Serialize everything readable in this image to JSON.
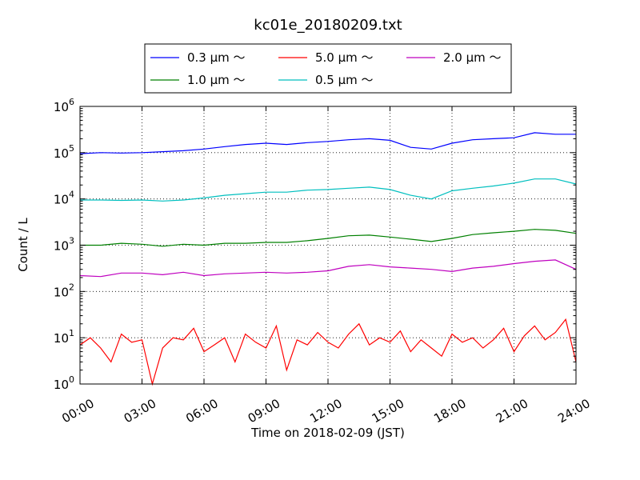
{
  "chart_data": {
    "type": "line",
    "title": "kc01e_20180209.txt",
    "xlabel": "Time on 2018-02-09 (JST)",
    "ylabel": "Count / L",
    "y_scale": "log",
    "ylim": [
      1,
      1000000
    ],
    "xlim_hours": [
      0,
      24
    ],
    "x_tick_labels": [
      "00:00",
      "03:00",
      "06:00",
      "09:00",
      "12:00",
      "15:00",
      "18:00",
      "21:00",
      "24:00"
    ],
    "y_tick_labels": [
      {
        "base": "10",
        "exp": "0"
      },
      {
        "base": "10",
        "exp": "1"
      },
      {
        "base": "10",
        "exp": "2"
      },
      {
        "base": "10",
        "exp": "3"
      },
      {
        "base": "10",
        "exp": "4"
      },
      {
        "base": "10",
        "exp": "5"
      },
      {
        "base": "10",
        "exp": "6"
      }
    ],
    "grid": true,
    "legend_position": "top",
    "series": [
      {
        "name": "0.3 μm ～",
        "color": "#0000ff",
        "x_hours": [
          0,
          1,
          2,
          3,
          4,
          5,
          6,
          7,
          8,
          9,
          10,
          11,
          12,
          13,
          14,
          15,
          16,
          17,
          18,
          19,
          20,
          21,
          22,
          23,
          24
        ],
        "values": [
          95000,
          100000,
          98000,
          100000,
          105000,
          110000,
          120000,
          135000,
          150000,
          160000,
          150000,
          165000,
          175000,
          190000,
          200000,
          185000,
          130000,
          120000,
          160000,
          190000,
          200000,
          210000,
          270000,
          250000,
          250000
        ]
      },
      {
        "name": "0.5 μm ～",
        "color": "#00bfbf",
        "x_hours": [
          0,
          1,
          2,
          3,
          4,
          5,
          6,
          7,
          8,
          9,
          10,
          11,
          12,
          13,
          14,
          15,
          16,
          17,
          18,
          19,
          20,
          21,
          22,
          23,
          24
        ],
        "values": [
          9500,
          9500,
          9300,
          9500,
          9000,
          9500,
          10500,
          12000,
          13000,
          14000,
          14000,
          15500,
          16000,
          17000,
          18000,
          16000,
          12000,
          10000,
          15000,
          17000,
          19000,
          22000,
          27000,
          27000,
          21000
        ]
      },
      {
        "name": "1.0 μm ～",
        "color": "#008000",
        "x_hours": [
          0,
          1,
          2,
          3,
          4,
          5,
          6,
          7,
          8,
          9,
          10,
          11,
          12,
          13,
          14,
          15,
          16,
          17,
          18,
          19,
          20,
          21,
          22,
          23,
          24
        ],
        "values": [
          1000,
          1000,
          1100,
          1050,
          950,
          1050,
          1000,
          1100,
          1100,
          1150,
          1150,
          1250,
          1400,
          1600,
          1650,
          1500,
          1350,
          1200,
          1400,
          1700,
          1850,
          2000,
          2200,
          2100,
          1800
        ]
      },
      {
        "name": "2.0 μm ～",
        "color": "#bf00bf",
        "x_hours": [
          0,
          1,
          2,
          3,
          4,
          5,
          6,
          7,
          8,
          9,
          10,
          11,
          12,
          13,
          14,
          15,
          16,
          17,
          18,
          19,
          20,
          21,
          22,
          23,
          24
        ],
        "values": [
          220,
          210,
          250,
          250,
          230,
          260,
          220,
          240,
          250,
          260,
          250,
          260,
          280,
          350,
          380,
          340,
          320,
          300,
          270,
          320,
          350,
          400,
          450,
          480,
          300
        ]
      },
      {
        "name": "5.0 μm ～",
        "color": "#ff0000",
        "x_hours": [
          0,
          0.5,
          1,
          1.5,
          2,
          2.5,
          3,
          3.5,
          4,
          4.5,
          5,
          5.5,
          6,
          6.5,
          7,
          7.5,
          8,
          8.5,
          9,
          9.5,
          10,
          10.5,
          11,
          11.5,
          12,
          12.5,
          13,
          13.5,
          14,
          14.5,
          15,
          15.5,
          16,
          16.5,
          17,
          17.5,
          18,
          18.5,
          19,
          19.5,
          20,
          20.5,
          21,
          21.5,
          22,
          22.5,
          23,
          23.5,
          24
        ],
        "values": [
          7,
          10,
          6,
          3,
          12,
          8,
          9,
          1,
          6,
          10,
          9,
          16,
          5,
          7,
          10,
          3,
          12,
          8,
          6,
          18,
          2,
          9,
          7,
          13,
          8,
          6,
          12,
          20,
          7,
          10,
          8,
          14,
          5,
          9,
          6,
          4,
          12,
          8,
          10,
          6,
          9,
          16,
          5,
          11,
          18,
          9,
          13,
          25,
          3
        ]
      }
    ],
    "legend": [
      {
        "label": "0.3 μm ～",
        "color": "#0000ff"
      },
      {
        "label": "1.0 μm ～",
        "color": "#008000"
      },
      {
        "label": "5.0 μm ～",
        "color": "#ff0000"
      },
      {
        "label": "0.5 μm ～",
        "color": "#00bfbf"
      },
      {
        "label": "2.0 μm ～",
        "color": "#bf00bf"
      }
    ]
  }
}
